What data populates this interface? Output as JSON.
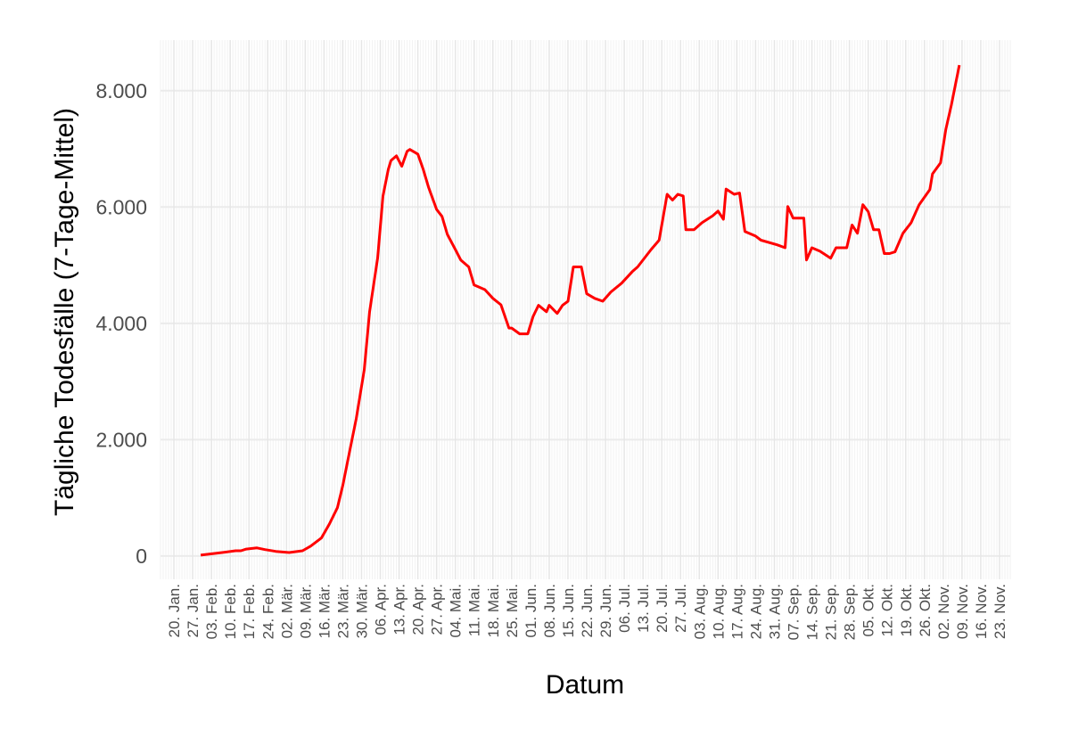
{
  "chart_data": {
    "type": "line",
    "x_label": "Datum",
    "y_label": "Tägliche Todesfälle (7-Tage-Mittel)",
    "color": "#ff0000",
    "grid": true,
    "x": [
      "01-30",
      "02-07",
      "02-12",
      "02-14",
      "02-16",
      "02-20",
      "02-23",
      "02-27",
      "03-03",
      "03-08",
      "03-11",
      "03-15",
      "03-18",
      "03-21",
      "03-23",
      "03-25",
      "03-28",
      "03-31",
      "04-02",
      "04-05",
      "04-07",
      "04-09",
      "04-10",
      "04-12",
      "04-14",
      "04-16",
      "04-17",
      "04-20",
      "04-22",
      "04-24",
      "04-27",
      "04-29",
      "05-01",
      "05-04",
      "05-06",
      "05-09",
      "05-11",
      "05-15",
      "05-18",
      "05-21",
      "05-24",
      "05-25",
      "05-28",
      "05-31",
      "06-02",
      "06-04",
      "06-07",
      "06-08",
      "06-11",
      "06-13",
      "06-15",
      "06-17",
      "06-20",
      "06-22",
      "06-25",
      "06-28",
      "07-01",
      "07-05",
      "07-09",
      "07-11",
      "07-16",
      "07-19",
      "07-22",
      "07-24",
      "07-26",
      "07-28",
      "07-29",
      "08-01",
      "08-04",
      "08-08",
      "08-10",
      "08-12",
      "08-13",
      "08-16",
      "08-18",
      "08-20",
      "08-24",
      "08-26",
      "09-01",
      "09-04",
      "09-05",
      "09-07",
      "09-11",
      "09-12",
      "09-14",
      "09-17",
      "09-21",
      "09-23",
      "09-27",
      "09-29",
      "10-01",
      "10-03",
      "10-05",
      "10-07",
      "10-09",
      "10-11",
      "10-13",
      "10-15",
      "10-18",
      "10-21",
      "10-24",
      "10-28",
      "10-29",
      "11-01",
      "11-03",
      "11-05",
      "11-08"
    ],
    "values": [
      15,
      60,
      90,
      90,
      120,
      140,
      110,
      80,
      60,
      90,
      170,
      310,
      550,
      830,
      1210,
      1670,
      2360,
      3200,
      4200,
      5120,
      6190,
      6650,
      6800,
      6880,
      6700,
      6960,
      6990,
      6910,
      6650,
      6340,
      5960,
      5840,
      5530,
      5270,
      5090,
      4970,
      4660,
      4580,
      4430,
      4320,
      3920,
      3920,
      3820,
      3820,
      4120,
      4310,
      4200,
      4310,
      4170,
      4310,
      4380,
      4970,
      4970,
      4510,
      4430,
      4380,
      4540,
      4690,
      4890,
      4970,
      5270,
      5430,
      6220,
      6120,
      6220,
      6190,
      5610,
      5610,
      5730,
      5850,
      5930,
      5790,
      6310,
      6220,
      6240,
      5580,
      5500,
      5430,
      5350,
      5300,
      6010,
      5810,
      5810,
      5090,
      5300,
      5240,
      5120,
      5300,
      5300,
      5690,
      5550,
      6040,
      5920,
      5610,
      5610,
      5200,
      5200,
      5230,
      5550,
      5730,
      6040,
      6300,
      6570,
      6760,
      7340,
      7750,
      8440
    ],
    "xlim": [
      "01-15",
      "11-27"
    ],
    "xticks": [
      {
        "value": "01-20",
        "label": "20. Jan."
      },
      {
        "value": "01-27",
        "label": "27. Jan."
      },
      {
        "value": "02-03",
        "label": "03. Feb."
      },
      {
        "value": "02-10",
        "label": "10. Feb."
      },
      {
        "value": "02-17",
        "label": "17. Feb."
      },
      {
        "value": "02-24",
        "label": "24. Feb."
      },
      {
        "value": "03-02",
        "label": "02. Mär."
      },
      {
        "value": "03-09",
        "label": "09. Mär."
      },
      {
        "value": "03-16",
        "label": "16. Mär."
      },
      {
        "value": "03-23",
        "label": "23. Mär."
      },
      {
        "value": "03-30",
        "label": "30. Mär."
      },
      {
        "value": "04-06",
        "label": "06. Apr."
      },
      {
        "value": "04-13",
        "label": "13. Apr."
      },
      {
        "value": "04-20",
        "label": "20. Apr."
      },
      {
        "value": "04-27",
        "label": "27. Apr."
      },
      {
        "value": "05-04",
        "label": "04. Mai."
      },
      {
        "value": "05-11",
        "label": "11. Mai."
      },
      {
        "value": "05-18",
        "label": "18. Mai."
      },
      {
        "value": "05-25",
        "label": "25. Mai."
      },
      {
        "value": "06-01",
        "label": "01. Jun."
      },
      {
        "value": "06-08",
        "label": "08. Jun."
      },
      {
        "value": "06-15",
        "label": "15. Jun."
      },
      {
        "value": "06-22",
        "label": "22. Jun."
      },
      {
        "value": "06-29",
        "label": "29. Jun."
      },
      {
        "value": "07-06",
        "label": "06. Jul."
      },
      {
        "value": "07-13",
        "label": "13. Jul."
      },
      {
        "value": "07-20",
        "label": "20. Jul."
      },
      {
        "value": "07-27",
        "label": "27. Jul."
      },
      {
        "value": "08-03",
        "label": "03. Aug."
      },
      {
        "value": "08-10",
        "label": "10. Aug."
      },
      {
        "value": "08-17",
        "label": "17. Aug."
      },
      {
        "value": "08-24",
        "label": "24. Aug."
      },
      {
        "value": "08-31",
        "label": "31. Aug."
      },
      {
        "value": "09-07",
        "label": "07. Sep."
      },
      {
        "value": "09-14",
        "label": "14. Sep."
      },
      {
        "value": "09-21",
        "label": "21. Sep."
      },
      {
        "value": "09-28",
        "label": "28. Sep."
      },
      {
        "value": "10-05",
        "label": "05. Okt."
      },
      {
        "value": "10-12",
        "label": "12. Okt."
      },
      {
        "value": "10-19",
        "label": "19. Okt."
      },
      {
        "value": "10-26",
        "label": "26. Okt."
      },
      {
        "value": "11-02",
        "label": "02. Nov."
      },
      {
        "value": "11-09",
        "label": "09. Nov."
      },
      {
        "value": "11-16",
        "label": "16. Nov."
      },
      {
        "value": "11-23",
        "label": "23. Nov."
      }
    ],
    "ylim": [
      -400,
      8870
    ],
    "yticks": [
      0,
      {
        "value": 2000,
        "label": "2.000"
      },
      {
        "value": 4000,
        "label": "4.000"
      },
      {
        "value": 6000,
        "label": "6.000"
      },
      {
        "value": 8000,
        "label": "8.000"
      }
    ]
  }
}
